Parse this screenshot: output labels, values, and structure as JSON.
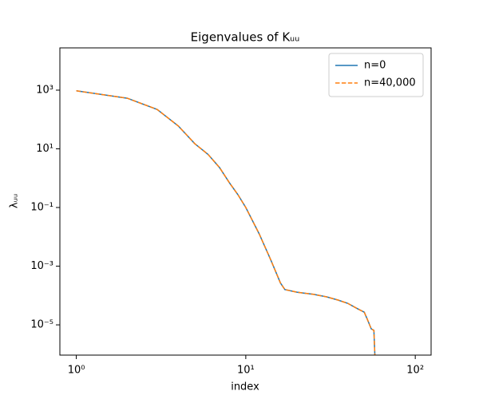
{
  "chart_data": {
    "type": "line",
    "title": "Eigenvalues of Kᵤᵤ",
    "x_label": "index",
    "y_label": "λᵤᵤ",
    "x_scale": "log",
    "y_scale": "log",
    "x": [
      1,
      2,
      3,
      4,
      5,
      6,
      7,
      8,
      9,
      10,
      12,
      14,
      15,
      16,
      17,
      20,
      25,
      30,
      35,
      40,
      45,
      50,
      52,
      55,
      57,
      58
    ],
    "series": [
      {
        "name": "n=0",
        "color": "#1f77b4",
        "linestyle": "solid",
        "values": [
          950,
          530,
          220,
          60,
          15,
          6.4,
          2.3,
          0.7,
          0.27,
          0.1,
          0.0126,
          0.0017,
          0.00066,
          0.00027,
          0.00016,
          0.00013,
          0.00011,
          9e-05,
          7e-05,
          5.4e-05,
          3.7e-05,
          2.7e-05,
          1.6e-05,
          7.3e-06,
          6.5e-06,
          5e-07
        ]
      },
      {
        "name": "n=40,000",
        "color": "#ff7f0e",
        "linestyle": "dashed",
        "values": [
          950,
          530,
          220,
          60,
          15,
          6.4,
          2.3,
          0.7,
          0.27,
          0.1,
          0.0126,
          0.0017,
          0.00066,
          0.00027,
          0.00016,
          0.00013,
          0.00011,
          9e-05,
          7e-05,
          5.4e-05,
          3.7e-05,
          2.7e-05,
          1.6e-05,
          7.3e-06,
          6.5e-06,
          5e-07
        ]
      }
    ],
    "xlim": [
      0.8,
      124
    ],
    "ylim": [
      9.3e-07,
      27600
    ],
    "xticks": [
      {
        "value": 1,
        "label": "10⁰"
      },
      {
        "value": 10,
        "label": "10¹"
      },
      {
        "value": 100,
        "label": "10²"
      }
    ],
    "yticks": [
      {
        "value": 1e-05,
        "label": "10⁻⁵"
      },
      {
        "value": 0.001,
        "label": "10⁻³"
      },
      {
        "value": 0.1,
        "label": "10⁻¹"
      },
      {
        "value": 10,
        "label": "10¹"
      },
      {
        "value": 1000,
        "label": "10³"
      }
    ],
    "grid": false,
    "legend": "upper right"
  }
}
